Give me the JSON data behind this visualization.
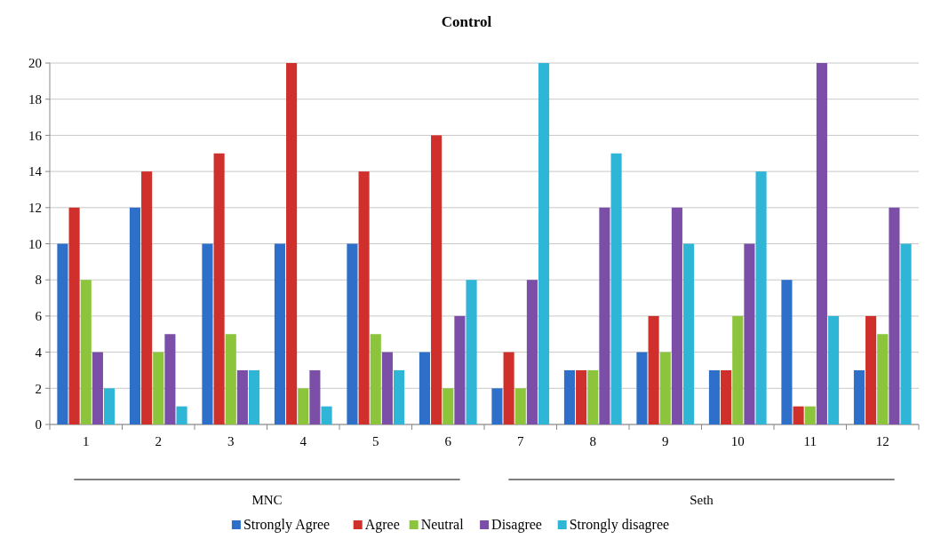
{
  "chart_data": {
    "type": "bar",
    "title": "Control",
    "categories": [
      "1",
      "2",
      "3",
      "4",
      "5",
      "6",
      "7",
      "8",
      "9",
      "10",
      "11",
      "12"
    ],
    "series": [
      {
        "name": "Strongly Agree",
        "color": "#2e6fc9",
        "values": [
          10,
          12,
          10,
          10,
          10,
          4,
          2,
          3,
          4,
          3,
          8,
          3
        ]
      },
      {
        "name": "Agree",
        "color": "#d0302c",
        "values": [
          12,
          14,
          15,
          20,
          14,
          16,
          4,
          3,
          6,
          3,
          1,
          6
        ]
      },
      {
        "name": "Neutral",
        "color": "#8cc43c",
        "values": [
          8,
          4,
          5,
          2,
          5,
          2,
          2,
          3,
          4,
          6,
          1,
          5
        ]
      },
      {
        "name": "Disagree",
        "color": "#7b4fa8",
        "values": [
          4,
          5,
          3,
          3,
          4,
          6,
          8,
          12,
          12,
          10,
          20,
          12
        ]
      },
      {
        "name": "Strongly disagree",
        "color": "#2fb5d6",
        "values": [
          2,
          1,
          3,
          1,
          3,
          8,
          20,
          15,
          10,
          14,
          6,
          10
        ]
      }
    ],
    "ylim": [
      0,
      20
    ],
    "yticks": [
      0,
      2,
      4,
      6,
      8,
      10,
      12,
      14,
      16,
      18,
      20
    ],
    "grid": "y",
    "legend": "bottom",
    "annotations": [
      "MNC",
      "Seth"
    ]
  }
}
